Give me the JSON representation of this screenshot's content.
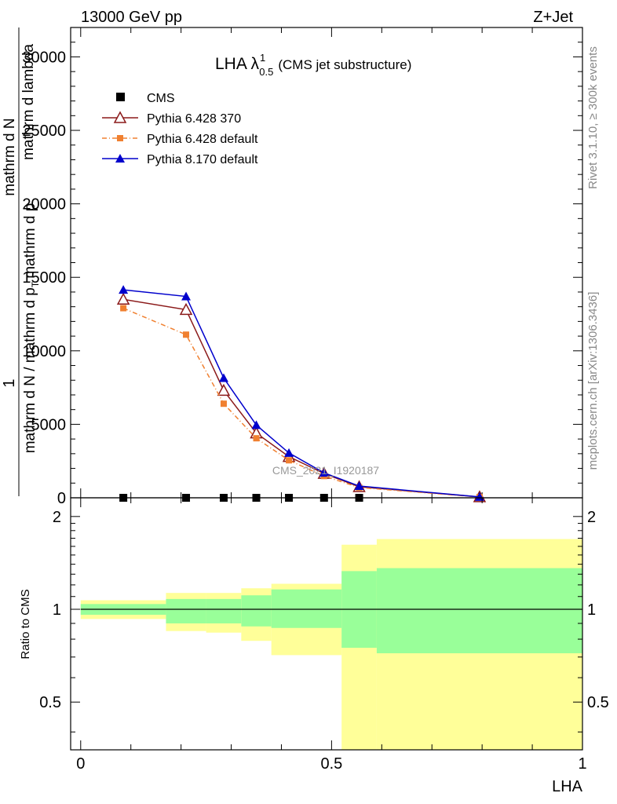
{
  "header": {
    "energy_label": "13000 GeV pp",
    "process_label": "Z+Jet"
  },
  "side_labels": {
    "rivet": "Rivet 3.1.10, ≥ 300k events",
    "mcplots": "mcplots.cern.ch [arXiv:1306.3436]"
  },
  "watermark": "CMS_2021_I1920187",
  "colors": {
    "cms": "#000000",
    "pythia6_370": "#8b1a1a",
    "pythia6_default": "#f08030",
    "pythia8_default": "#0000cc",
    "band_inner": "#99ff99",
    "band_outer": "#ffff99"
  },
  "chart_data": [
    {
      "type": "line",
      "title": "LHA λ",
      "title_sup": "1",
      "title_sub": "0.5",
      "title_suffix": "(CMS jet substructure)",
      "ylabel_parts": [
        "1",
        "mathrm d N / mathrm d p",
        "T",
        "mathrm d p",
        "mathrm d N",
        "mathrm d lambda"
      ],
      "xlim": [
        -0.02,
        1.0
      ],
      "ylim": [
        0,
        32000
      ],
      "yticks": [
        0,
        5000,
        10000,
        15000,
        20000,
        25000,
        30000
      ],
      "ytick_labels": [
        "0",
        "5000",
        "10000",
        "15000",
        "20000",
        "25000",
        "30000"
      ],
      "legend_position": "top-left",
      "series": [
        {
          "name": "CMS",
          "marker": "square",
          "x": [
            0.085,
            0.21,
            0.285,
            0.35,
            0.415,
            0.485,
            0.555
          ],
          "y": [
            0,
            0,
            0,
            0,
            0,
            0,
            0
          ]
        },
        {
          "name": "Pythia 6.428 370",
          "marker": "open-triangle",
          "x": [
            0.085,
            0.21,
            0.285,
            0.35,
            0.415,
            0.485,
            0.555,
            0.795
          ],
          "y": [
            13500,
            12800,
            7300,
            4400,
            2800,
            1650,
            750,
            60
          ]
        },
        {
          "name": "Pythia 6.428 default",
          "marker": "square",
          "dashed": true,
          "x": [
            0.085,
            0.21,
            0.285,
            0.35,
            0.415,
            0.485,
            0.555,
            0.795
          ],
          "y": [
            12900,
            11100,
            6400,
            4050,
            2550,
            1480,
            700,
            50
          ]
        },
        {
          "name": "Pythia 8.170 default",
          "marker": "triangle",
          "x": [
            0.085,
            0.21,
            0.285,
            0.35,
            0.415,
            0.485,
            0.555,
            0.795
          ],
          "y": [
            14150,
            13700,
            8150,
            4950,
            3050,
            1700,
            800,
            60
          ]
        }
      ]
    },
    {
      "type": "area",
      "ylabel": "Ratio to CMS",
      "xlabel": "LHA",
      "xlim": [
        -0.02,
        1.0
      ],
      "ylim": [
        0.35,
        2.3
      ],
      "reference_line": 1,
      "xticks": [
        0,
        0.5,
        1
      ],
      "xtick_labels": [
        "0",
        "0.5",
        "1"
      ],
      "yticks": [
        0.5,
        1,
        2
      ],
      "ytick_labels": [
        "0.5",
        "1",
        "2"
      ],
      "bins": [
        {
          "x0": 0.0,
          "x1": 0.17,
          "inner": [
            0.96,
            1.04
          ],
          "outer": [
            0.93,
            1.07
          ]
        },
        {
          "x0": 0.17,
          "x1": 0.25,
          "inner": [
            0.9,
            1.08
          ],
          "outer": [
            0.85,
            1.13
          ]
        },
        {
          "x0": 0.25,
          "x1": 0.32,
          "inner": [
            0.9,
            1.08
          ],
          "outer": [
            0.84,
            1.13
          ]
        },
        {
          "x0": 0.32,
          "x1": 0.38,
          "inner": [
            0.88,
            1.11
          ],
          "outer": [
            0.79,
            1.17
          ]
        },
        {
          "x0": 0.38,
          "x1": 0.52,
          "inner": [
            0.87,
            1.16
          ],
          "outer": [
            0.71,
            1.21
          ]
        },
        {
          "x0": 0.52,
          "x1": 0.59,
          "inner": [
            0.75,
            1.33
          ],
          "outer": [
            0.35,
            1.62
          ]
        },
        {
          "x0": 0.59,
          "x1": 1.0,
          "inner": [
            0.72,
            1.36
          ],
          "outer": [
            0.35,
            1.69
          ]
        }
      ]
    }
  ]
}
